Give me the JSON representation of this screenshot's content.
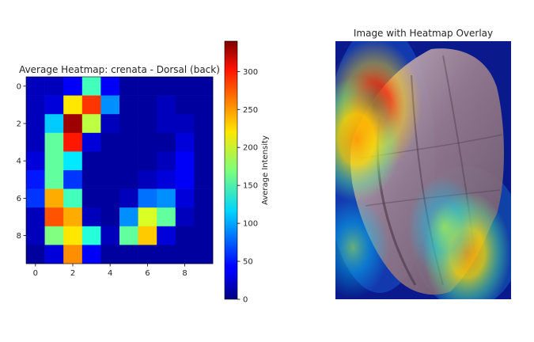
{
  "chart_data": [
    {
      "type": "heatmap",
      "title": "Average Heatmap: crenata - Dorsal (back)",
      "xlabel": "",
      "ylabel": "",
      "xticks": [
        "0",
        "2",
        "4",
        "6",
        "8"
      ],
      "yticks": [
        "0",
        "2",
        "4",
        "6",
        "8"
      ],
      "values": [
        [
          20,
          20,
          40,
          150,
          40,
          10,
          10,
          10,
          10,
          10
        ],
        [
          20,
          30,
          220,
          280,
          90,
          10,
          10,
          20,
          10,
          10
        ],
        [
          20,
          110,
          330,
          190,
          20,
          10,
          10,
          20,
          20,
          10
        ],
        [
          20,
          160,
          290,
          30,
          10,
          10,
          10,
          10,
          30,
          10
        ],
        [
          30,
          160,
          120,
          10,
          10,
          10,
          10,
          20,
          40,
          10
        ],
        [
          50,
          160,
          60,
          10,
          10,
          10,
          20,
          30,
          40,
          10
        ],
        [
          60,
          240,
          150,
          10,
          10,
          20,
          80,
          90,
          30,
          10
        ],
        [
          20,
          270,
          240,
          20,
          10,
          90,
          200,
          160,
          20,
          10
        ],
        [
          20,
          170,
          220,
          140,
          20,
          160,
          230,
          30,
          10,
          10
        ],
        [
          10,
          30,
          250,
          40,
          10,
          10,
          10,
          10,
          10,
          10
        ]
      ],
      "vmin": 0,
      "vmax": 340,
      "colormap": "jet",
      "colorbar": {
        "label": "Average Intensity",
        "ticks": [
          "0",
          "50",
          "100",
          "150",
          "200",
          "250",
          "300"
        ]
      }
    },
    {
      "type": "image",
      "title": "Image with Heatmap Overlay",
      "hotspots": [
        {
          "cx": 0.22,
          "cy": 0.25,
          "level": 1.0
        },
        {
          "cx": 0.12,
          "cy": 0.38,
          "level": 0.9
        },
        {
          "cx": 0.75,
          "cy": 0.82,
          "level": 0.85
        },
        {
          "cx": 0.62,
          "cy": 0.72,
          "level": 0.55
        },
        {
          "cx": 0.1,
          "cy": 0.8,
          "level": 0.55
        }
      ]
    }
  ]
}
